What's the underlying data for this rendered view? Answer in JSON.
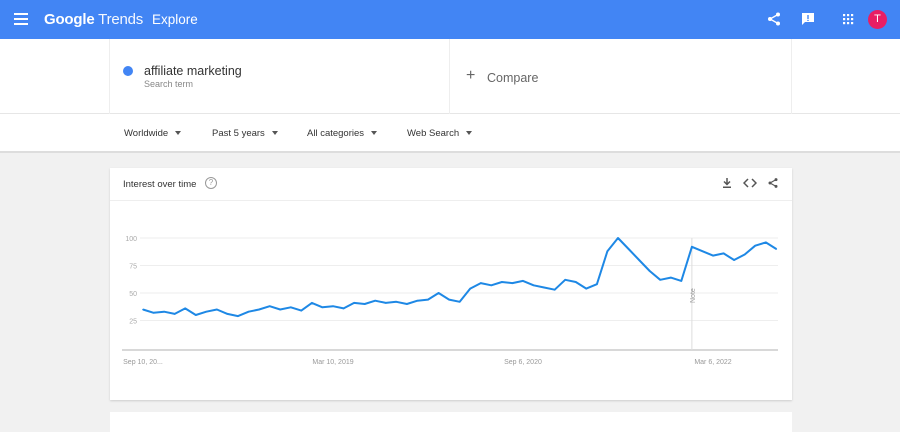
{
  "header": {
    "title_bold": "Google",
    "title_rest": " Trends",
    "section": "Explore",
    "avatar_letter": "T",
    "icons": [
      "menu-icon",
      "share-icon",
      "feedback-icon",
      "apps-icon"
    ]
  },
  "search": {
    "term": "affiliate marketing",
    "term_type": "Search term",
    "term_color": "#4285f4",
    "compare_label": "Compare"
  },
  "filters": [
    "Worldwide",
    "Past 5 years",
    "All categories",
    "Web Search"
  ],
  "card": {
    "title": "Interest over time",
    "help": "?",
    "icons": [
      "download-icon",
      "embed-icon",
      "share-icon"
    ]
  },
  "chart_data": {
    "type": "line",
    "title": "Interest over time",
    "ylim": [
      0,
      100
    ],
    "y_ticks": [
      25,
      50,
      75,
      100
    ],
    "x_tick_labels": [
      "Sep 10, 20...",
      "Mar 10, 2019",
      "Sep 6, 2020",
      "Mar 6, 2022"
    ],
    "x_tick_dates": [
      "2017-09",
      "2019-03",
      "2020-09",
      "2022-03"
    ],
    "grid": true,
    "line_color": "#1e88e5",
    "annotation": {
      "label": "Note",
      "date": "2022-01"
    },
    "series": [
      {
        "x": [
          "2017-09",
          "2017-10",
          "2017-11",
          "2017-12",
          "2018-01",
          "2018-02",
          "2018-03",
          "2018-04",
          "2018-05",
          "2018-06",
          "2018-07",
          "2018-08",
          "2018-09",
          "2018-10",
          "2018-11",
          "2018-12",
          "2019-01",
          "2019-02",
          "2019-03",
          "2019-04",
          "2019-05",
          "2019-06",
          "2019-07",
          "2019-08",
          "2019-09",
          "2019-10",
          "2019-11",
          "2019-12",
          "2020-01",
          "2020-02",
          "2020-03",
          "2020-04",
          "2020-05",
          "2020-06",
          "2020-07",
          "2020-08",
          "2020-09",
          "2020-10",
          "2020-11",
          "2020-12",
          "2021-01",
          "2021-02",
          "2021-03",
          "2021-04",
          "2021-05",
          "2021-06",
          "2021-07",
          "2021-08",
          "2021-09",
          "2021-10",
          "2021-11",
          "2021-12",
          "2022-01",
          "2022-02",
          "2022-03",
          "2022-04",
          "2022-05",
          "2022-06",
          "2022-07",
          "2022-08",
          "2022-09"
        ],
        "values": [
          35,
          32,
          33,
          31,
          36,
          30,
          33,
          35,
          31,
          29,
          33,
          35,
          38,
          35,
          37,
          34,
          41,
          37,
          38,
          36,
          41,
          40,
          43,
          41,
          42,
          40,
          43,
          44,
          50,
          44,
          42,
          54,
          59,
          57,
          60,
          59,
          61,
          57,
          55,
          53,
          62,
          60,
          54,
          58,
          88,
          100,
          90,
          80,
          70,
          62,
          64,
          61,
          92,
          88,
          84,
          86,
          80,
          85,
          93,
          96,
          90
        ]
      }
    ]
  }
}
